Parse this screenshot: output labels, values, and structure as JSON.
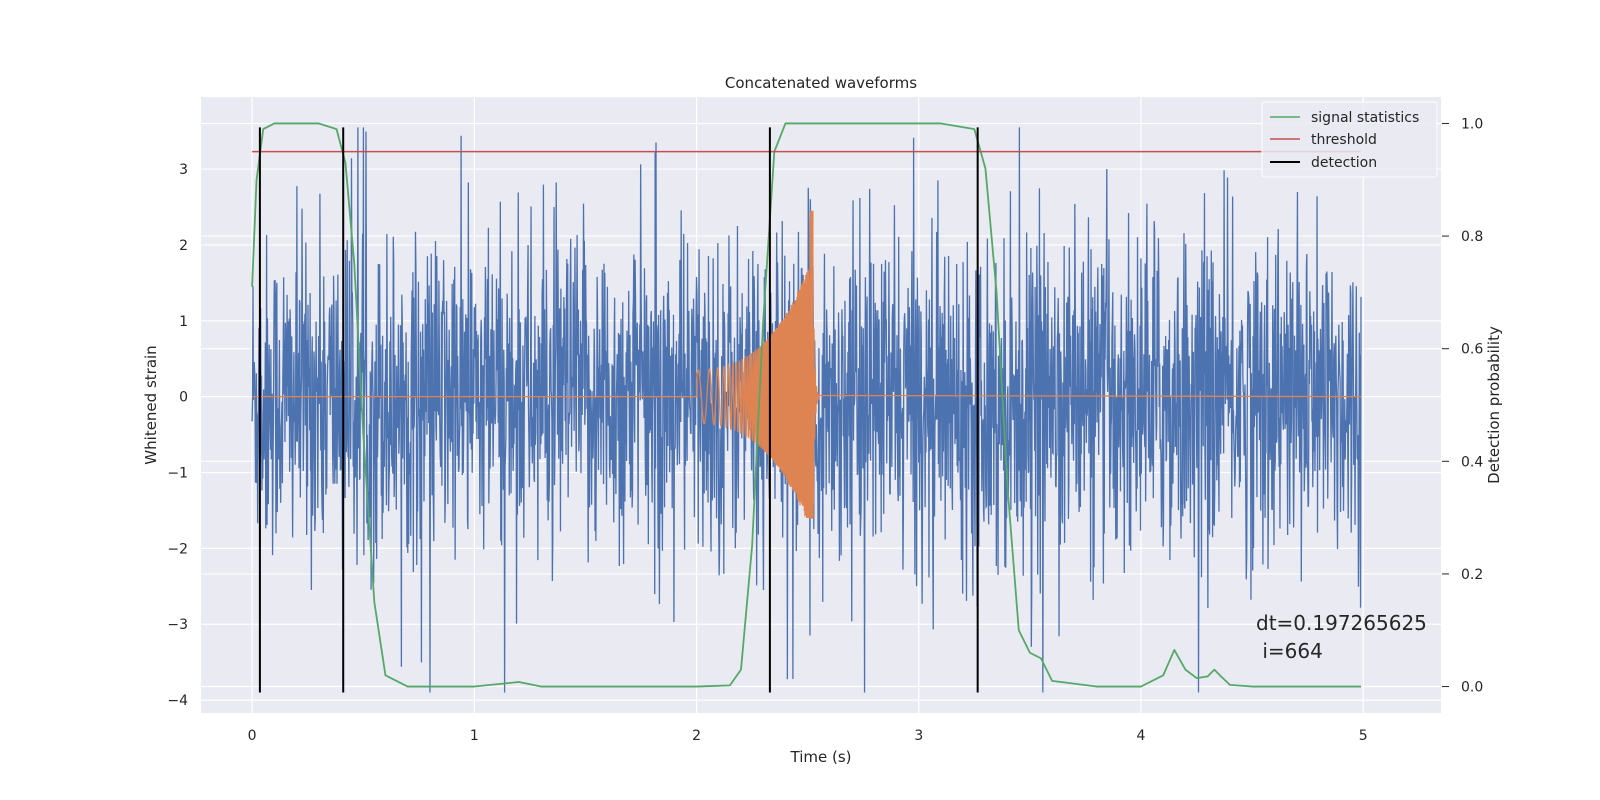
{
  "chart_data": {
    "type": "line",
    "title": "Concatenated waveforms",
    "xlabel": "Time (s)",
    "ylabel": "Whitened strain",
    "y2label": "Detection probability",
    "xlim": [
      -0.23,
      5.35
    ],
    "ylim": [
      -4.17,
      3.95
    ],
    "y2lim": [
      -0.047,
      1.047
    ],
    "x_ticks": [
      "0",
      "1",
      "2",
      "3",
      "4",
      "5"
    ],
    "y_ticks": [
      "−4",
      "−3",
      "−2",
      "−1",
      "0",
      "1",
      "2",
      "3"
    ],
    "y2_ticks": [
      "0.0",
      "0.2",
      "0.4",
      "0.6",
      "0.8",
      "1.0"
    ],
    "grid": true,
    "legend_placement": "top-right",
    "colors": {
      "background": "#eaeaf2",
      "grid": "#ffffff",
      "strain": "#4c72b0",
      "injection": "#dd8452",
      "signal_statistics": "#55a868",
      "threshold": "#c44e52",
      "detection": "#000000"
    },
    "series": [
      {
        "name": "signal statistics",
        "axis": "right",
        "x": [
          0.0,
          0.02,
          0.05,
          0.1,
          0.2,
          0.3,
          0.38,
          0.42,
          0.46,
          0.5,
          0.55,
          0.6,
          0.7,
          0.85,
          1.0,
          1.2,
          1.3,
          1.6,
          2.0,
          2.15,
          2.2,
          2.25,
          2.3,
          2.35,
          2.4,
          2.5,
          2.8,
          3.1,
          3.25,
          3.3,
          3.35,
          3.4,
          3.45,
          3.5,
          3.55,
          3.6,
          3.8,
          4.0,
          4.1,
          4.15,
          4.2,
          4.25,
          4.3,
          4.33,
          4.36,
          4.4,
          4.5,
          4.99
        ],
        "values": [
          0.71,
          0.9,
          0.99,
          1.0,
          1.0,
          1.0,
          0.99,
          0.93,
          0.75,
          0.45,
          0.15,
          0.02,
          0.0,
          0.0,
          0.0,
          0.008,
          0.0,
          0.0,
          0.0,
          0.002,
          0.03,
          0.25,
          0.65,
          0.95,
          1.0,
          1.0,
          1.0,
          1.0,
          0.99,
          0.92,
          0.7,
          0.35,
          0.1,
          0.06,
          0.05,
          0.01,
          0.0,
          0.0,
          0.02,
          0.065,
          0.03,
          0.015,
          0.018,
          0.03,
          0.018,
          0.003,
          0.0,
          0.0
        ]
      },
      {
        "name": "threshold",
        "axis": "right",
        "x": [
          0.0,
          4.99
        ],
        "values": [
          0.95,
          0.95
        ]
      },
      {
        "name": "detection",
        "axis": "left",
        "x": [
          0.035,
          0.41,
          2.33,
          3.265
        ],
        "y_range": [
          -3.9,
          3.55
        ]
      },
      {
        "name": "",
        "role": "whitened strain noise",
        "axis": "left",
        "x_range": [
          0.0,
          4.99
        ],
        "y_range": [
          -3.9,
          3.55
        ]
      },
      {
        "name": "",
        "role": "injected chirp",
        "axis": "left",
        "x_range": [
          2.0,
          2.55
        ],
        "y_range": [
          -1.6,
          2.45
        ]
      }
    ],
    "annotations": [
      "dt=0.197265625",
      " i=664"
    ]
  }
}
